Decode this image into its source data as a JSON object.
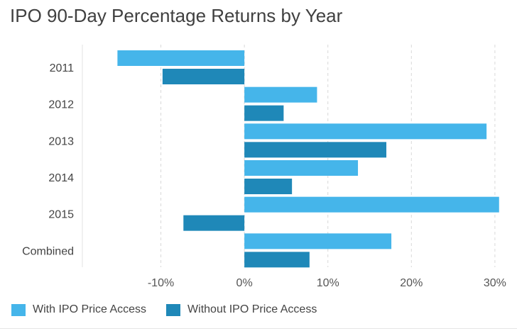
{
  "chart_data": {
    "type": "bar",
    "orientation": "horizontal",
    "title": "IPO 90-Day Percentage Returns by Year",
    "categories": [
      "2011",
      "2012",
      "2013",
      "2014",
      "2015",
      "Combined"
    ],
    "series": [
      {
        "name": "With IPO Price Access",
        "color": "#45b5ea",
        "values": [
          -15.2,
          8.7,
          29.0,
          13.6,
          30.5,
          17.6
        ]
      },
      {
        "name": "Without IPO Price Access",
        "color": "#1f88b8",
        "values": [
          -9.8,
          4.7,
          17.0,
          5.7,
          -7.3,
          7.8
        ]
      }
    ],
    "xlim": [
      -19.4,
      31.2
    ],
    "xticks": [
      -10,
      0,
      10,
      20,
      30
    ],
    "xtick_labels": [
      "-10%",
      "0%",
      "10%",
      "20%",
      "30%"
    ],
    "xlabel": "",
    "ylabel": "",
    "grid": true,
    "legend_position": "bottom-left"
  }
}
